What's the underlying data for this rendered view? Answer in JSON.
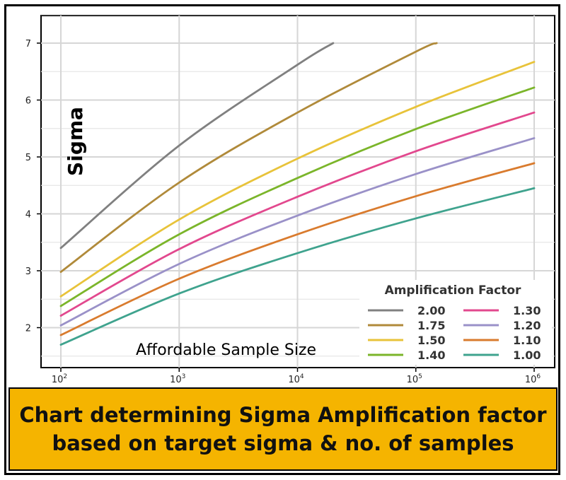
{
  "chart_data": {
    "type": "line",
    "title": "",
    "xlabel": "Affordable Sample Size",
    "ylabel": "Sigma",
    "x_scale": "log10",
    "xlim": [
      100,
      1000000
    ],
    "ylim": [
      1.4,
      7.5
    ],
    "x_ticks": [
      {
        "base": "10",
        "exp": "2",
        "value": 100
      },
      {
        "base": "10",
        "exp": "3",
        "value": 1000
      },
      {
        "base": "10",
        "exp": "4",
        "value": 10000
      },
      {
        "base": "10",
        "exp": "5",
        "value": 100000
      },
      {
        "base": "10",
        "exp": "6",
        "value": 1000000
      }
    ],
    "y_ticks": [
      "2",
      "3",
      "4",
      "5",
      "6",
      "7"
    ],
    "grid": true,
    "legend_title": "Amplification Factor",
    "legend_position": "bottom-right",
    "series": [
      {
        "name": "2.00",
        "color": "#808080",
        "x": [
          100,
          1000,
          10000,
          20000
        ],
        "y": [
          3.4,
          5.2,
          6.62,
          7.0
        ]
      },
      {
        "name": "1.75",
        "color": "#b08a3a",
        "x": [
          100,
          1000,
          10000,
          100000,
          150000
        ],
        "y": [
          2.98,
          4.55,
          5.78,
          6.85,
          7.0
        ]
      },
      {
        "name": "1.50",
        "color": "#e8c33a",
        "x": [
          100,
          1000,
          10000,
          100000,
          1000000
        ],
        "y": [
          2.55,
          3.9,
          4.97,
          5.88,
          6.67
        ]
      },
      {
        "name": "1.40",
        "color": "#7bb52a",
        "x": [
          100,
          1000,
          10000,
          100000,
          1000000
        ],
        "y": [
          2.38,
          3.64,
          4.63,
          5.49,
          6.22
        ]
      },
      {
        "name": "1.30",
        "color": "#e2488e",
        "x": [
          100,
          1000,
          10000,
          100000,
          1000000
        ],
        "y": [
          2.21,
          3.38,
          4.3,
          5.1,
          5.78
        ]
      },
      {
        "name": "1.20",
        "color": "#9a91c8",
        "x": [
          100,
          1000,
          10000,
          100000,
          1000000
        ],
        "y": [
          2.04,
          3.12,
          3.97,
          4.7,
          5.33
        ]
      },
      {
        "name": "1.10",
        "color": "#d97b2e",
        "x": [
          100,
          1000,
          10000,
          100000,
          1000000
        ],
        "y": [
          1.87,
          2.86,
          3.64,
          4.31,
          4.89
        ]
      },
      {
        "name": "1.00",
        "color": "#3fa38e",
        "x": [
          100,
          1000,
          10000,
          100000,
          1000000
        ],
        "y": [
          1.7,
          2.6,
          3.31,
          3.92,
          4.45
        ]
      }
    ]
  },
  "caption": {
    "line1": "Chart determining Sigma Amplification factor",
    "line2": "based on target sigma & no. of samples"
  }
}
